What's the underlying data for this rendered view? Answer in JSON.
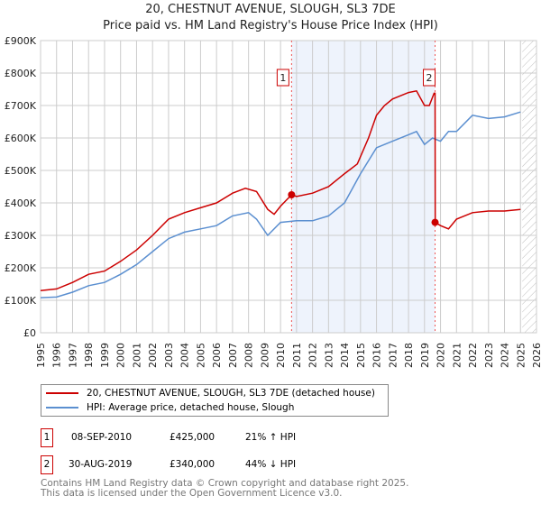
{
  "title": "20, CHESTNUT AVENUE, SLOUGH, SL3 7DE",
  "subtitle": "Price paid vs. HM Land Registry's House Price Index (HPI)",
  "chart_data": {
    "type": "line",
    "xlim": [
      1995,
      2026
    ],
    "ylim": [
      0,
      900000
    ],
    "yticks": [
      0,
      100000,
      200000,
      300000,
      400000,
      500000,
      600000,
      700000,
      800000,
      900000
    ],
    "ytick_labels": [
      "£0",
      "£100K",
      "£200K",
      "£300K",
      "£400K",
      "£500K",
      "£600K",
      "£700K",
      "£800K",
      "£900K"
    ],
    "xticks": [
      1995,
      1996,
      1997,
      1998,
      1999,
      2000,
      2001,
      2002,
      2003,
      2004,
      2005,
      2006,
      2007,
      2008,
      2009,
      2010,
      2011,
      2012,
      2013,
      2014,
      2015,
      2016,
      2017,
      2018,
      2019,
      2020,
      2021,
      2022,
      2023,
      2024,
      2025,
      2026
    ],
    "grid": true,
    "series": [
      {
        "name": "20, CHESTNUT AVENUE, SLOUGH, SL3 7DE (detached house)",
        "color": "#cc0000",
        "x": [
          1995,
          1996,
          1997,
          1998,
          1999,
          2000,
          2001,
          2002,
          2003,
          2004,
          2005,
          2006,
          2007,
          2007.8,
          2008.5,
          2009.2,
          2009.6,
          2010,
          2010.69,
          2011,
          2012,
          2013,
          2014,
          2014.8,
          2015.5,
          2016,
          2016.5,
          2017,
          2018,
          2018.5,
          2019,
          2019.3,
          2019.6,
          2019.66,
          2019.67,
          2020,
          2020.5,
          2021,
          2022,
          2023,
          2024,
          2025
        ],
        "y": [
          130000,
          135000,
          155000,
          180000,
          190000,
          220000,
          255000,
          300000,
          350000,
          370000,
          385000,
          400000,
          430000,
          445000,
          435000,
          380000,
          365000,
          390000,
          425000,
          420000,
          430000,
          450000,
          490000,
          520000,
          600000,
          670000,
          700000,
          720000,
          740000,
          745000,
          700000,
          700000,
          738000,
          738000,
          340000,
          330000,
          320000,
          350000,
          370000,
          375000,
          375000,
          380000
        ]
      },
      {
        "name": "HPI: Average price, detached house, Slough",
        "color": "#5b8fd0",
        "x": [
          1995,
          1996,
          1997,
          1998,
          1999,
          2000,
          2001,
          2002,
          2003,
          2004,
          2005,
          2006,
          2007,
          2008,
          2008.5,
          2009.2,
          2010,
          2011,
          2012,
          2013,
          2014,
          2015,
          2016,
          2017,
          2018,
          2018.5,
          2019,
          2019.5,
          2020,
          2020.5,
          2021,
          2022,
          2023,
          2024,
          2025
        ],
        "y": [
          108000,
          110000,
          125000,
          145000,
          155000,
          180000,
          210000,
          250000,
          290000,
          310000,
          320000,
          330000,
          360000,
          370000,
          350000,
          300000,
          340000,
          345000,
          345000,
          360000,
          400000,
          490000,
          570000,
          590000,
          610000,
          620000,
          580000,
          600000,
          590000,
          620000,
          620000,
          670000,
          660000,
          665000,
          680000
        ]
      }
    ],
    "sales": [
      {
        "label": "1",
        "x": 2010.69,
        "y": 425000
      },
      {
        "label": "2",
        "x": 2019.66,
        "y": 340000
      }
    ]
  },
  "legend": {
    "items": [
      "20, CHESTNUT AVENUE, SLOUGH, SL3 7DE (detached house)",
      "HPI: Average price, detached house, Slough"
    ]
  },
  "table": [
    {
      "num": "1",
      "date": "08-SEP-2010",
      "price": "£425,000",
      "hpi": "21% ↑ HPI"
    },
    {
      "num": "2",
      "date": "30-AUG-2019",
      "price": "£340,000",
      "hpi": "44% ↓ HPI"
    }
  ],
  "footer": [
    "Contains HM Land Registry data © Crown copyright and database right 2025.",
    "This data is licensed under the Open Government Licence v3.0."
  ]
}
